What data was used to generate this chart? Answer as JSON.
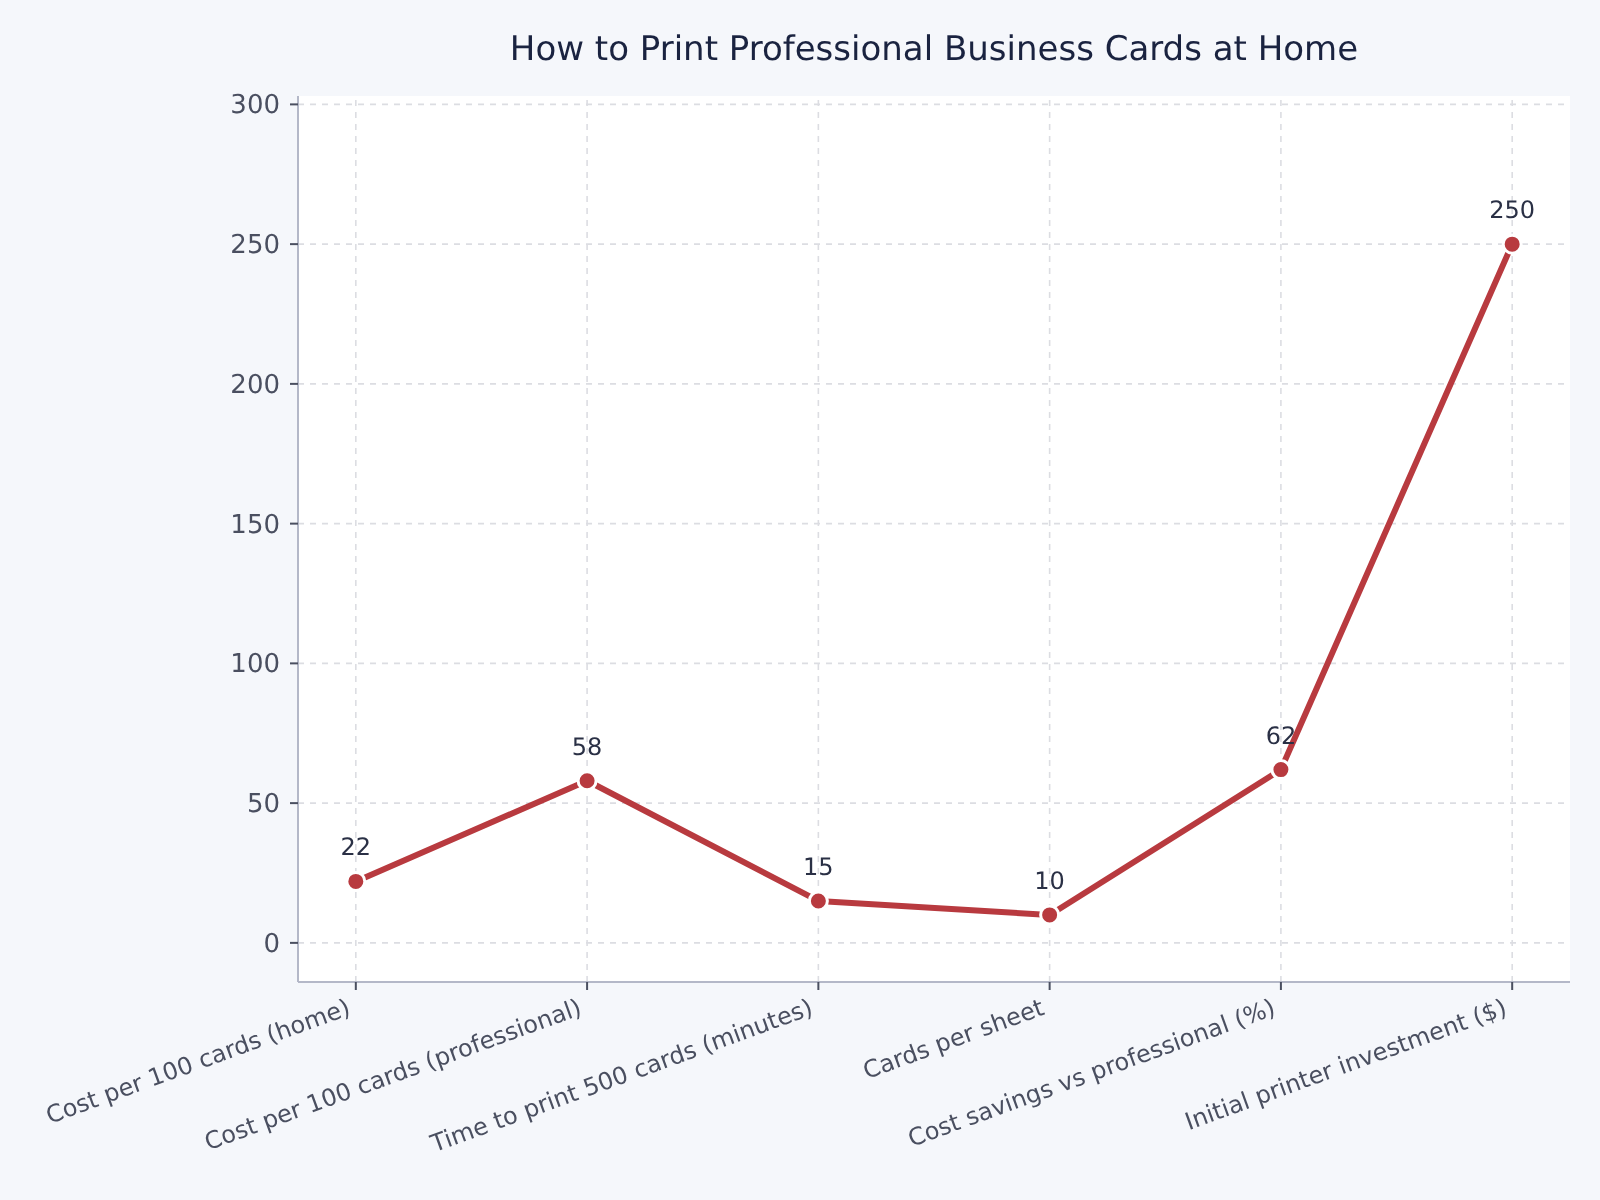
{
  "chart_data": {
    "type": "line",
    "title": "How to Print Professional Business Cards at Home",
    "categories": [
      "Cost per 100 cards (home)",
      "Cost per 100 cards (professional)",
      "Time to print 500 cards (minutes)",
      "Cards per sheet",
      "Cost savings vs professional (%)",
      "Initial printer investment ($)"
    ],
    "values": [
      22,
      58,
      15,
      10,
      62,
      250
    ],
    "color": "#b83a3f",
    "ylim": [
      -14,
      303
    ],
    "yticks": [
      0,
      50,
      100,
      150,
      200,
      250,
      300
    ],
    "grid": true,
    "marker": "circle",
    "line_style": "solid",
    "data_labels": true
  }
}
